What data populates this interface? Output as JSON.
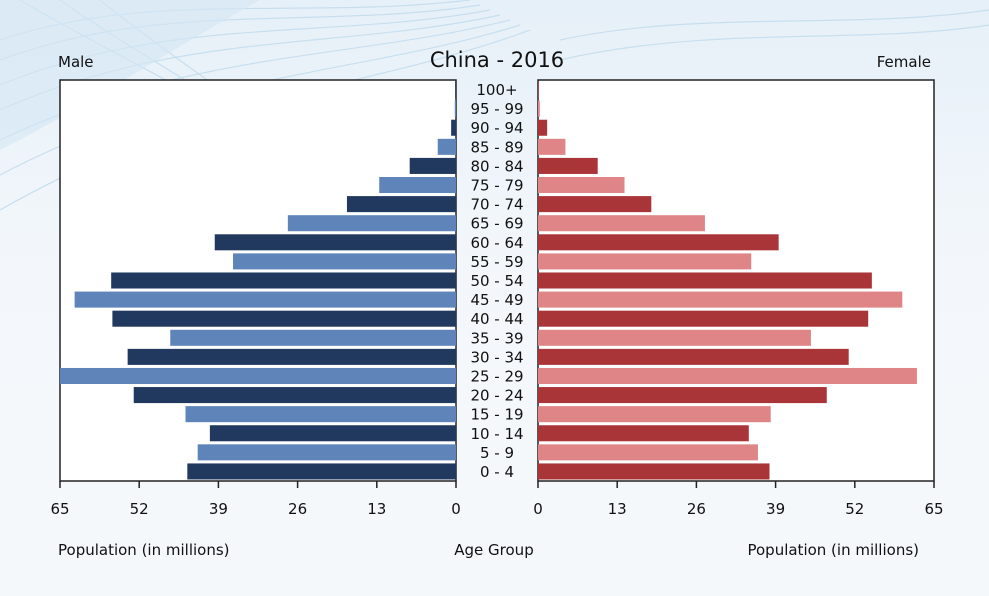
{
  "chart_data": {
    "type": "bar",
    "title": "China - 2016",
    "left_label": "Male",
    "right_label": "Female",
    "center_label": "Age Group",
    "xlabel_left": "Population (in millions)",
    "xlabel_right": "Population (in millions)",
    "xlim": [
      0,
      65
    ],
    "ticks_left": [
      "65",
      "52",
      "39",
      "26",
      "13",
      "0"
    ],
    "ticks_right": [
      "0",
      "13",
      "26",
      "39",
      "52",
      "65"
    ],
    "categories": [
      "100+",
      "95 - 99",
      "90 - 94",
      "85 - 89",
      "80 - 84",
      "75 - 79",
      "70 - 74",
      "65 - 69",
      "60 - 64",
      "55 - 59",
      "50 - 54",
      "45 - 49",
      "40 - 44",
      "35 - 39",
      "30 - 34",
      "25 - 29",
      "20 - 24",
      "15 - 19",
      "10 - 14",
      "5 - 9",
      "0 - 4"
    ],
    "series": [
      {
        "name": "Male",
        "values": [
          0.1,
          0.2,
          0.8,
          3.0,
          7.6,
          12.6,
          17.9,
          27.6,
          39.6,
          36.6,
          56.6,
          62.6,
          56.4,
          46.9,
          53.9,
          65.0,
          52.9,
          44.4,
          40.4,
          42.4,
          44.1
        ]
      },
      {
        "name": "Female",
        "values": [
          0.1,
          0.3,
          1.5,
          4.5,
          9.8,
          14.2,
          18.6,
          27.4,
          39.5,
          35.0,
          54.8,
          59.8,
          54.2,
          44.8,
          51.0,
          62.2,
          47.4,
          38.2,
          34.6,
          36.1,
          38.0
        ]
      }
    ],
    "colors": {
      "male_dark": "#22395f",
      "male_light": "#5e84b9",
      "female_dark": "#aa3538",
      "female_light": "#df8587"
    }
  }
}
